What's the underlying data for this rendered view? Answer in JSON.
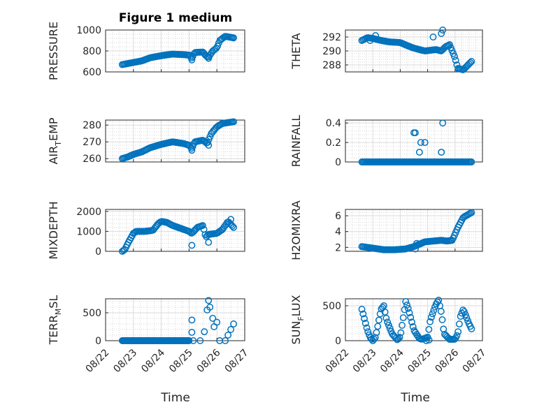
{
  "figure": {
    "title": "Figure 1 medium"
  },
  "colors": {
    "marker": "#0072BD",
    "axis": "#262626"
  },
  "chart_data": [
    {
      "type": "scatter",
      "title": "Figure 1 medium",
      "ylabel": "PRESSURE",
      "yticks": [
        600,
        800,
        1000
      ],
      "ylim": [
        600,
        1000
      ],
      "grid": true,
      "minor_grid": true,
      "anchors": [
        [
          0.6,
          670
        ],
        [
          0.8,
          680
        ],
        [
          1.0,
          690
        ],
        [
          1.3,
          705
        ],
        [
          1.6,
          735
        ],
        [
          2.0,
          755
        ],
        [
          2.4,
          770
        ],
        [
          2.8,
          765
        ],
        [
          3.0,
          760
        ],
        [
          3.1,
          730
        ],
        [
          3.2,
          785
        ],
        [
          3.5,
          790
        ],
        [
          3.6,
          755
        ],
        [
          3.7,
          740
        ],
        [
          3.85,
          800
        ],
        [
          4.0,
          830
        ],
        [
          4.1,
          900
        ],
        [
          4.3,
          940
        ],
        [
          4.6,
          925
        ]
      ],
      "extra": [
        [
          3.1,
          715
        ],
        [
          3.7,
          730
        ]
      ]
    },
    {
      "type": "scatter",
      "ylabel": "THETA",
      "yticks": [
        288,
        290,
        292
      ],
      "ylim": [
        287,
        293
      ],
      "grid": true,
      "minor_grid": true,
      "anchors": [
        [
          0.6,
          291.5
        ],
        [
          0.8,
          291.9
        ],
        [
          1.0,
          291.8
        ],
        [
          1.3,
          291.5
        ],
        [
          1.6,
          291.3
        ],
        [
          2.0,
          291.2
        ],
        [
          2.3,
          290.7
        ],
        [
          2.5,
          290.4
        ],
        [
          2.7,
          290.2
        ],
        [
          2.9,
          290.0
        ],
        [
          3.1,
          290.1
        ],
        [
          3.3,
          290.2
        ],
        [
          3.5,
          290.0
        ],
        [
          3.65,
          290.6
        ],
        [
          3.8,
          290.9
        ],
        [
          4.0,
          289.0
        ],
        [
          4.1,
          287.5
        ],
        [
          4.3,
          287.3
        ],
        [
          4.6,
          288.5
        ]
      ],
      "extra": [
        [
          3.2,
          292.0
        ],
        [
          3.5,
          292.5
        ],
        [
          3.55,
          293.0
        ],
        [
          0.9,
          291.5
        ],
        [
          1.1,
          292.2
        ]
      ]
    },
    {
      "type": "scatter",
      "ylabel": "AIR_TEMP",
      "yticks": [
        260,
        270,
        280
      ],
      "ylim": [
        258,
        283
      ],
      "grid": true,
      "minor_grid": true,
      "anchors": [
        [
          0.6,
          260
        ],
        [
          0.8,
          261
        ],
        [
          1.0,
          262.5
        ],
        [
          1.3,
          264
        ],
        [
          1.6,
          266.5
        ],
        [
          2.0,
          268.5
        ],
        [
          2.4,
          270
        ],
        [
          2.8,
          269
        ],
        [
          3.0,
          268
        ],
        [
          3.1,
          266
        ],
        [
          3.2,
          270
        ],
        [
          3.5,
          271
        ],
        [
          3.65,
          269
        ],
        [
          3.8,
          275
        ],
        [
          4.0,
          279
        ],
        [
          4.2,
          281
        ],
        [
          4.6,
          282
        ]
      ],
      "extra": [
        [
          3.1,
          265
        ],
        [
          3.7,
          268
        ]
      ]
    },
    {
      "type": "scatter",
      "ylabel": "RAINFALL",
      "yticks": [
        0,
        0.2,
        0.4
      ],
      "ylim": [
        0,
        0.43
      ],
      "grid": true,
      "minor_grid": true,
      "anchors": [
        [
          0.6,
          0
        ],
        [
          4.6,
          0
        ]
      ],
      "extra": [
        [
          2.5,
          0.3
        ],
        [
          2.55,
          0.3
        ],
        [
          2.7,
          0.1
        ],
        [
          2.75,
          0.2
        ],
        [
          2.9,
          0.2
        ],
        [
          3.55,
          0.4
        ],
        [
          3.5,
          0.1
        ]
      ]
    },
    {
      "type": "scatter",
      "ylabel": "MIXDEPTH",
      "yticks": [
        0,
        1000,
        2000
      ],
      "ylim": [
        0,
        2100
      ],
      "grid": true,
      "minor_grid": true,
      "anchors": [
        [
          0.6,
          0
        ],
        [
          0.7,
          100
        ],
        [
          0.8,
          400
        ],
        [
          0.9,
          650
        ],
        [
          1.0,
          900
        ],
        [
          1.1,
          1000
        ],
        [
          1.4,
          1000
        ],
        [
          1.7,
          1050
        ],
        [
          1.9,
          1400
        ],
        [
          2.0,
          1500
        ],
        [
          2.2,
          1450
        ],
        [
          2.4,
          1300
        ],
        [
          2.6,
          1200
        ],
        [
          2.8,
          1100
        ],
        [
          3.0,
          1000
        ],
        [
          3.1,
          900
        ],
        [
          3.3,
          1200
        ],
        [
          3.5,
          1300
        ],
        [
          3.6,
          700
        ],
        [
          3.7,
          850
        ],
        [
          4.0,
          900
        ],
        [
          4.2,
          1100
        ],
        [
          4.4,
          1500
        ],
        [
          4.6,
          1200
        ]
      ],
      "extra": [
        [
          3.1,
          300
        ],
        [
          3.7,
          450
        ],
        [
          4.5,
          1600
        ]
      ]
    },
    {
      "type": "scatter",
      "ylabel": "H2OMIXRA",
      "yticks": [
        2,
        4,
        6
      ],
      "ylim": [
        1.5,
        6.8
      ],
      "grid": true,
      "minor_grid": true,
      "anchors": [
        [
          0.6,
          2.1
        ],
        [
          1.0,
          1.9
        ],
        [
          1.4,
          1.7
        ],
        [
          1.8,
          1.7
        ],
        [
          2.2,
          1.8
        ],
        [
          2.5,
          2.1
        ],
        [
          2.7,
          2.4
        ],
        [
          2.9,
          2.7
        ],
        [
          3.2,
          2.8
        ],
        [
          3.5,
          2.9
        ],
        [
          3.7,
          2.8
        ],
        [
          3.9,
          2.9
        ],
        [
          4.1,
          4.5
        ],
        [
          4.3,
          5.8
        ],
        [
          4.6,
          6.4
        ]
      ],
      "extra": [
        [
          2.55,
          1.8
        ],
        [
          2.6,
          2.5
        ]
      ]
    },
    {
      "type": "scatter",
      "ylabel": "TERR_MSL",
      "yticks": [
        0,
        500
      ],
      "ylim": [
        0,
        750
      ],
      "grid": true,
      "minor_grid": true,
      "anchors": [
        [
          0.6,
          0
        ],
        [
          3.0,
          0
        ]
      ],
      "extra": [
        [
          3.1,
          150
        ],
        [
          3.1,
          370
        ],
        [
          3.15,
          0
        ],
        [
          3.4,
          0
        ],
        [
          3.55,
          160
        ],
        [
          3.65,
          550
        ],
        [
          3.7,
          720
        ],
        [
          3.75,
          600
        ],
        [
          3.85,
          400
        ],
        [
          3.9,
          250
        ],
        [
          4.0,
          330
        ],
        [
          4.1,
          0
        ],
        [
          4.3,
          0
        ],
        [
          4.4,
          100
        ],
        [
          4.5,
          200
        ],
        [
          4.6,
          300
        ]
      ]
    },
    {
      "type": "scatter",
      "ylabel": "SUN_FLUX",
      "yticks": [
        0,
        500
      ],
      "ylim": [
        0,
        600
      ],
      "grid": true,
      "minor_grid": true,
      "anchors": [
        [
          0.6,
          450
        ],
        [
          0.7,
          300
        ],
        [
          0.8,
          150
        ],
        [
          0.9,
          50
        ],
        [
          1.0,
          0
        ],
        [
          1.1,
          50
        ],
        [
          1.2,
          250
        ],
        [
          1.3,
          450
        ],
        [
          1.4,
          500
        ],
        [
          1.5,
          300
        ],
        [
          1.7,
          100
        ],
        [
          1.9,
          10
        ],
        [
          2.0,
          60
        ],
        [
          2.1,
          300
        ],
        [
          2.2,
          560
        ],
        [
          2.3,
          450
        ],
        [
          2.5,
          150
        ],
        [
          2.7,
          30
        ],
        [
          2.8,
          20
        ],
        [
          3.0,
          50
        ],
        [
          3.1,
          300
        ],
        [
          3.3,
          520
        ],
        [
          3.4,
          580
        ],
        [
          3.5,
          400
        ],
        [
          3.6,
          100
        ],
        [
          3.8,
          20
        ],
        [
          4.0,
          20
        ],
        [
          4.1,
          100
        ],
        [
          4.2,
          350
        ],
        [
          4.3,
          450
        ],
        [
          4.5,
          250
        ],
        [
          4.6,
          170
        ]
      ],
      "extra": [
        [
          2.95,
          0
        ],
        [
          3.05,
          10
        ]
      ]
    }
  ],
  "xaxis": {
    "label": "Time",
    "ticks": [
      "08/22",
      "08/23",
      "08/24",
      "08/25",
      "08/26",
      "08/27"
    ]
  }
}
